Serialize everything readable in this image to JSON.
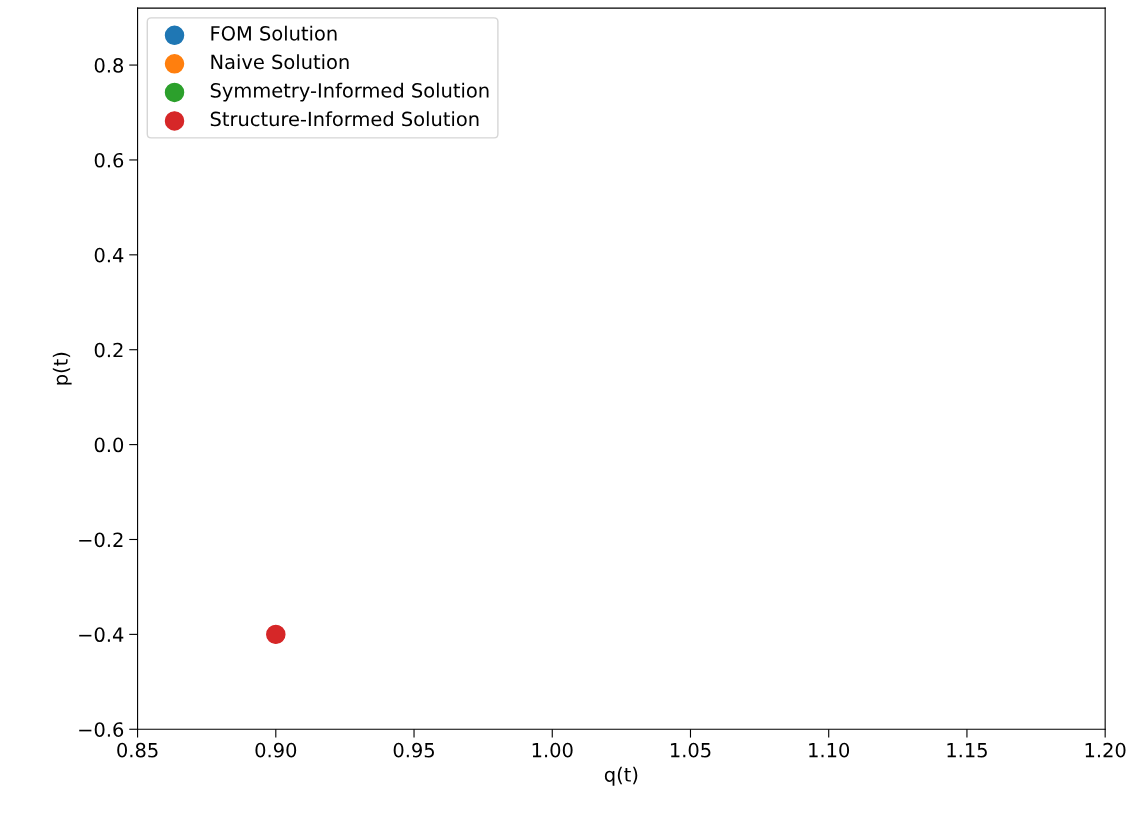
{
  "chart_data": {
    "type": "scatter",
    "xlabel": "q(t)",
    "ylabel": "p(t)",
    "xlim": [
      0.85,
      1.2
    ],
    "xticks": [
      {
        "value": 0.85,
        "label": "0.85"
      },
      {
        "value": 0.9,
        "label": "0.90"
      },
      {
        "value": 0.95,
        "label": "0.95"
      },
      {
        "value": 1.0,
        "label": "1.00"
      },
      {
        "value": 1.05,
        "label": "1.05"
      },
      {
        "value": 1.1,
        "label": "1.10"
      },
      {
        "value": 1.15,
        "label": "1.15"
      },
      {
        "value": 1.2,
        "label": "1.20"
      }
    ],
    "ylim": [
      -0.6,
      0.92
    ],
    "yticks": [
      {
        "value": -0.6,
        "label": "−0.6"
      },
      {
        "value": -0.4,
        "label": "−0.4"
      },
      {
        "value": -0.2,
        "label": "−0.2"
      },
      {
        "value": 0.0,
        "label": "0.0"
      },
      {
        "value": 0.2,
        "label": "0.2"
      },
      {
        "value": 0.4,
        "label": "0.4"
      },
      {
        "value": 0.6,
        "label": "0.6"
      },
      {
        "value": 0.8,
        "label": "0.8"
      }
    ],
    "legend": "top left",
    "marker": "circle",
    "x": [
      0.9
    ],
    "series": [
      {
        "name": "FOM Solution",
        "color": "#1f77b4",
        "values": [
          null
        ]
      },
      {
        "name": "Naive Solution",
        "color": "#ff7f0e",
        "values": [
          null
        ]
      },
      {
        "name": "Symmetry-Informed Solution",
        "color": "#2ca02c",
        "values": [
          null
        ]
      },
      {
        "name": "Structure-Informed Solution",
        "color": "#d62728",
        "values": [
          -0.4
        ]
      }
    ]
  }
}
